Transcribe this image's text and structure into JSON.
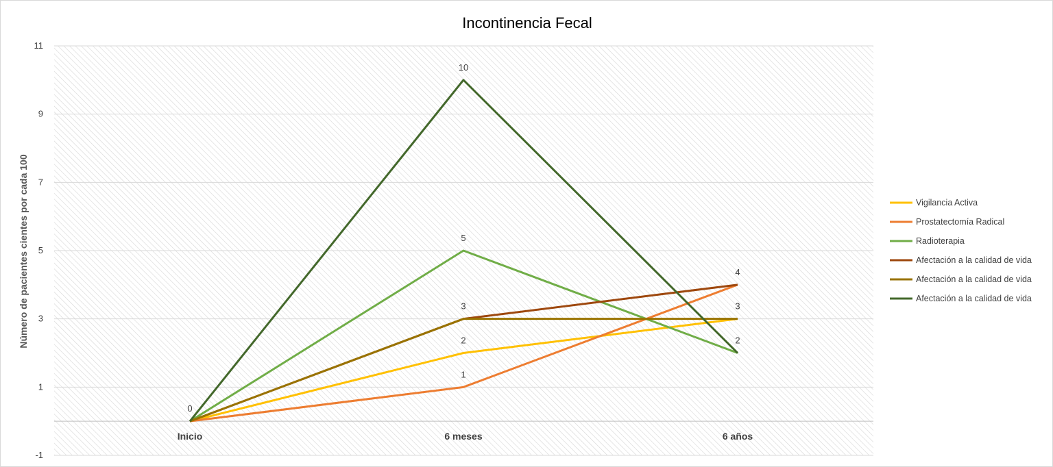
{
  "chart_data": {
    "type": "line",
    "title": "Incontinencia Fecal",
    "xlabel": "",
    "ylabel": "Número de pacientes cientes por cada 100",
    "categories": [
      "Inicio",
      "6 meses",
      "6 años"
    ],
    "ylim": [
      -1,
      11
    ],
    "yticks": [
      -1,
      1,
      3,
      5,
      7,
      9,
      11
    ],
    "grid": true,
    "legend_position": "right",
    "series": [
      {
        "name": "Vigilancia Activa",
        "color": "#FFC000",
        "values": [
          0,
          2,
          3
        ]
      },
      {
        "name": "Prostatectomía Radical",
        "color": "#ED7D31",
        "values": [
          0,
          1,
          4
        ]
      },
      {
        "name": "Radioterapia",
        "color": "#70AD47",
        "values": [
          0,
          5,
          2
        ]
      },
      {
        "name": "Afectación a la calidad de vida",
        "color": "#9E480E",
        "values": [
          0,
          3,
          4
        ]
      },
      {
        "name": "Afectación a la calidad de vida",
        "color": "#997300",
        "values": [
          0,
          3,
          3
        ]
      },
      {
        "name": "Afectación a la calidad de vida",
        "color": "#43682B",
        "values": [
          0,
          10,
          2
        ]
      }
    ],
    "data_labels": [
      {
        "category": "Inicio",
        "value": 0,
        "text": "0"
      },
      {
        "category": "6 meses",
        "value": 10,
        "text": "10"
      },
      {
        "category": "6 meses",
        "value": 5,
        "text": "5"
      },
      {
        "category": "6 meses",
        "value": 3,
        "text": "3"
      },
      {
        "category": "6 meses",
        "value": 2,
        "text": "2"
      },
      {
        "category": "6 meses",
        "value": 1,
        "text": "1"
      },
      {
        "category": "6 años",
        "value": 4,
        "text": "4"
      },
      {
        "category": "6 años",
        "value": 3,
        "text": "3"
      },
      {
        "category": "6 años",
        "value": 2,
        "text": "2"
      }
    ]
  }
}
